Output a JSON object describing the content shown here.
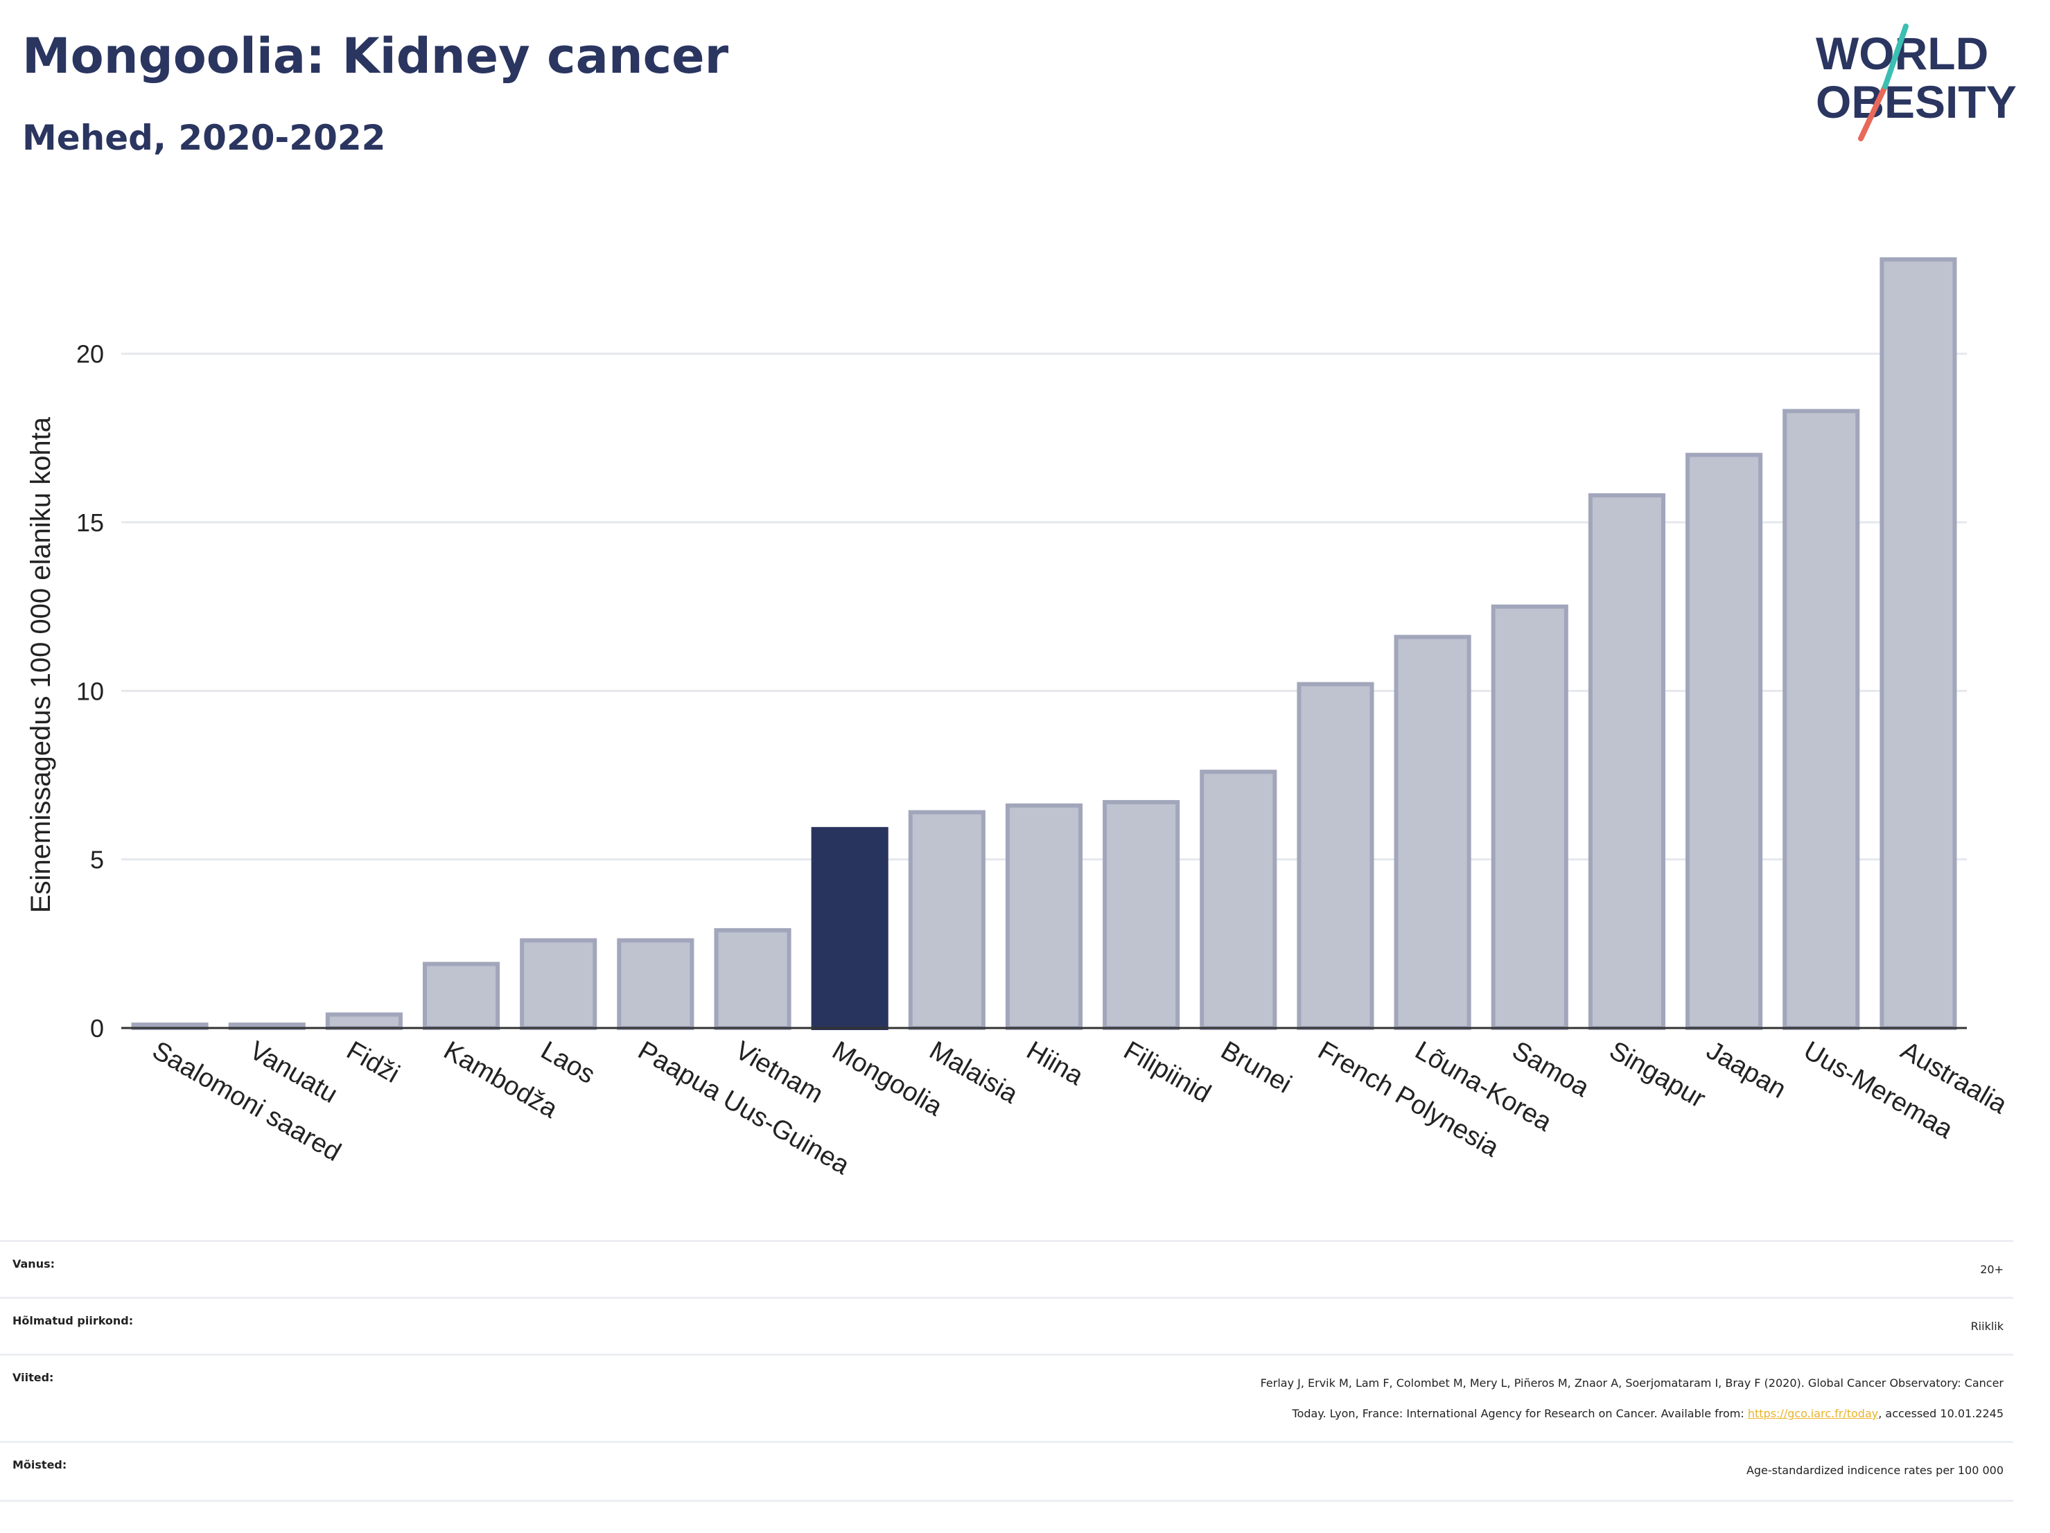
{
  "header": {
    "title": "Mongoolia: Kidney cancer",
    "subtitle": "Mehed, 2020-2022"
  },
  "logo": {
    "line1": "WORLD",
    "line2": "OBESITY",
    "name": "world-obesity-logo"
  },
  "colors": {
    "highlight": "#29345e",
    "bar": "#bfc2cf",
    "bar_edge": "#a1a6bb",
    "title": "#2a3560",
    "link": "#e9b22a"
  },
  "chart_data": {
    "type": "bar",
    "title": "Mongoolia: Kidney cancer",
    "subtitle": "Mehed, 2020-2022",
    "ylabel": "Esinemissagedus 100 000 elaniku kohta",
    "xlabel": "",
    "ylim": [
      0,
      24
    ],
    "yticks": [
      0,
      5,
      10,
      15,
      20
    ],
    "grid": true,
    "highlight": "Mongoolia",
    "categories": [
      "Saalomoni saared",
      "Vanuatu",
      "Fidži",
      "Kambodža",
      "Laos",
      "Paapua Uus-Guinea",
      "Vietnam",
      "Mongoolia",
      "Malaisia",
      "Hiina",
      "Filipiinid",
      "Brunei",
      "French Polynesia",
      "Lõuna-Korea",
      "Samoa",
      "Singapur",
      "Jaapan",
      "Uus-Meremaa",
      "Austraalia"
    ],
    "values": [
      0.1,
      0.1,
      0.4,
      1.9,
      2.6,
      2.6,
      2.9,
      5.9,
      6.4,
      6.6,
      6.7,
      7.6,
      10.2,
      11.6,
      12.5,
      15.8,
      17.0,
      18.3,
      22.8
    ]
  },
  "info": {
    "age_label": "Vanus:",
    "age_value": "20+",
    "region_label": "Hõlmatud piirkond:",
    "region_value": "Riiklik",
    "refs_label": "Viited:",
    "refs_line1": "Ferlay J, Ervik M, Lam F, Colombet M, Mery L, Piñeros M, Znaor A, Soerjomataram I, Bray F (2020). Global Cancer Observatory: Cancer",
    "refs_line2_pre": "Today. Lyon, France: International Agency for Research on Cancer. Available from: ",
    "refs_link": "https://gco.iarc.fr/today",
    "refs_line2_post": ", accessed 10.01.2245",
    "defs_label": "Mõisted:",
    "defs_value": "Age-standardized indicence rates per 100 000"
  }
}
